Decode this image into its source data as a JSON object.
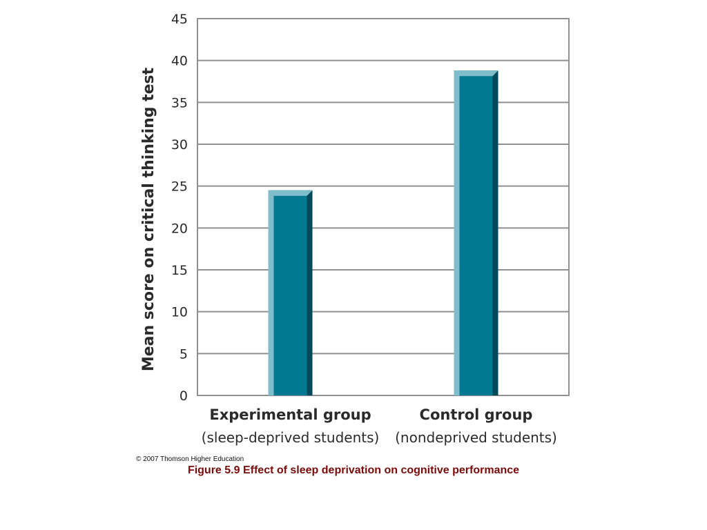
{
  "chart_data": {
    "type": "bar",
    "categories": [
      "Experimental group",
      "Control group"
    ],
    "category_sublabels": [
      "(sleep-deprived students)",
      "(nondeprived students)"
    ],
    "values": [
      24.5,
      38.8
    ],
    "title": "",
    "xlabel": "",
    "ylabel": "Mean score on critical thinking test",
    "ylim": [
      0,
      45
    ],
    "yticks": [
      0,
      5,
      10,
      15,
      20,
      25,
      30,
      35,
      40,
      45
    ],
    "grid": true,
    "legend": "none"
  },
  "colors": {
    "bar_face": "#027991",
    "bar_light": "#7fbdcc",
    "bar_dark": "#024a59",
    "grid": "#8f8f8f",
    "caption": "#7a0a0a"
  },
  "copyright": "© 2007 Thomson Higher Education",
  "caption": "Figure 5.9  Effect of sleep deprivation on cognitive performance"
}
